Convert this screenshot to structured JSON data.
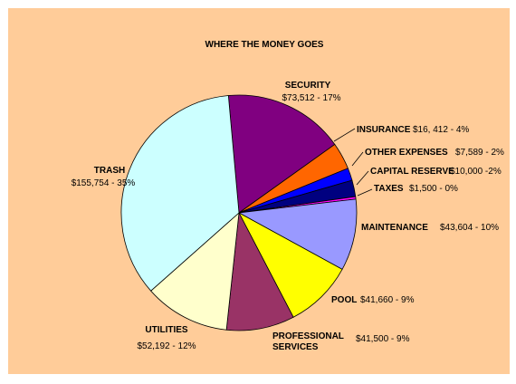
{
  "chart_data": {
    "type": "pie",
    "title": "WHERE THE MONEY GOES",
    "slices": [
      {
        "name": "SECURITY",
        "value": 73512,
        "value_label": "$73,512 - 17%",
        "color": "#800080"
      },
      {
        "name": "INSURANCE",
        "value": 16412,
        "value_label": "$16, 412 - 4%",
        "color": "#ff6600"
      },
      {
        "name": "OTHER EXPENSES",
        "value": 7589,
        "value_label": "$7,589 - 2%",
        "color": "#0000ff"
      },
      {
        "name": "CAPITAL RESERVE",
        "value": 10000,
        "value_label": "$10,000 -2%",
        "color": "#000080"
      },
      {
        "name": "TAXES",
        "value": 1500,
        "value_label": "$1,500 - 0%",
        "color": "#ff00ff"
      },
      {
        "name": "MAINTENANCE",
        "value": 43604,
        "value_label": "$43,604 - 10%",
        "color": "#9999ff"
      },
      {
        "name": "POOL",
        "value": 41660,
        "value_label": "$41,660 - 9%",
        "color": "#ffff00"
      },
      {
        "name": [
          "PROFESSIONAL",
          "SERVICES"
        ],
        "value": 41500,
        "value_label": "$41,500 - 9%",
        "color": "#993366"
      },
      {
        "name": "UTILITIES",
        "value": 52192,
        "value_label": "$52,192 - 12%",
        "color": "#ffffcc"
      },
      {
        "name": "TRASH",
        "value": 155754,
        "value_label": "$155,754 - 35%",
        "color": "#ccffff"
      }
    ],
    "background": "#ffcc99",
    "legend": "none"
  }
}
